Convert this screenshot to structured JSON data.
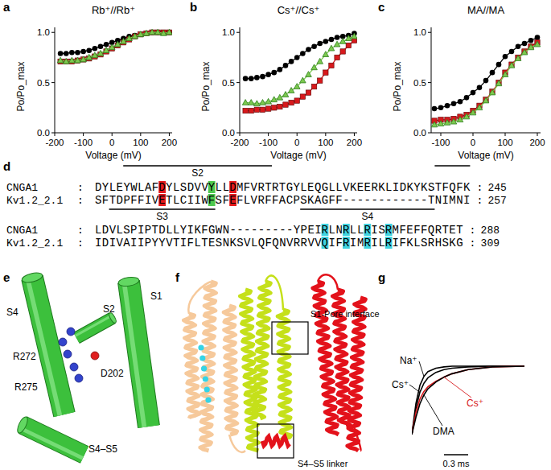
{
  "panel_labels": [
    "a",
    "b",
    "c",
    "d",
    "e",
    "f",
    "g"
  ],
  "chart_data": [
    {
      "type": "line",
      "title": "Rb⁺//Rb⁺",
      "xlabel": "Voltage (mV)",
      "ylabel": "Po/Po_max",
      "x": [
        -180,
        -160,
        -140,
        -120,
        -100,
        -80,
        -60,
        -40,
        -20,
        0,
        20,
        40,
        60,
        80,
        100,
        120,
        140,
        160,
        180,
        200
      ],
      "xlim": [
        -200,
        210
      ],
      "xticks": [
        -200,
        -100,
        0,
        100,
        200
      ],
      "ylim": [
        0,
        1.05
      ],
      "yticks": [
        {
          "value": 0,
          "label": "0.0"
        },
        {
          "value": 0.5,
          "label": "0.5"
        },
        {
          "value": 1,
          "label": "1.0"
        }
      ],
      "series": [
        {
          "color": "#000000",
          "marker": "circle",
          "values": [
            0.79,
            0.79,
            0.8,
            0.8,
            0.81,
            0.82,
            0.84,
            0.86,
            0.88,
            0.9,
            0.92,
            0.94,
            0.96,
            0.97,
            0.98,
            0.99,
            1.0,
            1.0,
            1.0,
            1.0
          ]
        },
        {
          "color": "#d7191c",
          "marker": "square",
          "values": [
            0.71,
            0.71,
            0.71,
            0.72,
            0.73,
            0.74,
            0.76,
            0.78,
            0.81,
            0.84,
            0.87,
            0.9,
            0.93,
            0.96,
            0.98,
            0.99,
            1.0,
            1.0,
            1.0,
            1.0
          ]
        },
        {
          "color": "#7cc94f",
          "marker": "triangle",
          "values": [
            0.72,
            0.71,
            0.72,
            0.72,
            0.73,
            0.75,
            0.77,
            0.79,
            0.82,
            0.85,
            0.88,
            0.91,
            0.94,
            0.96,
            0.98,
            0.99,
            1.0,
            1.0,
            0.99,
            1.0
          ]
        }
      ]
    },
    {
      "type": "line",
      "title": "Cs⁺//Cs⁺",
      "xlabel": "Voltage (mV)",
      "ylabel": "Po/Po_max",
      "x": [
        -180,
        -160,
        -140,
        -120,
        -100,
        -80,
        -60,
        -40,
        -20,
        0,
        20,
        40,
        60,
        80,
        100,
        120,
        140,
        160,
        180,
        200
      ],
      "xlim": [
        -200,
        210
      ],
      "xticks": [
        -200,
        -100,
        0,
        100,
        200
      ],
      "ylim": [
        0,
        1.05
      ],
      "yticks": [
        {
          "value": 0,
          "label": "0.0"
        },
        {
          "value": 0.5,
          "label": "0.5"
        },
        {
          "value": 1,
          "label": "1.0"
        }
      ],
      "series": [
        {
          "color": "#000000",
          "marker": "circle",
          "values": [
            0.54,
            0.54,
            0.55,
            0.56,
            0.58,
            0.6,
            0.63,
            0.67,
            0.71,
            0.75,
            0.79,
            0.83,
            0.86,
            0.89,
            0.91,
            0.93,
            0.95,
            0.96,
            0.97,
            0.99
          ]
        },
        {
          "color": "#d7191c",
          "marker": "square",
          "values": [
            0.22,
            0.22,
            0.23,
            0.23,
            0.24,
            0.25,
            0.26,
            0.28,
            0.3,
            0.32,
            0.36,
            0.4,
            0.46,
            0.52,
            0.6,
            0.67,
            0.75,
            0.81,
            0.87,
            0.92
          ]
        },
        {
          "color": "#7cc94f",
          "marker": "triangle",
          "values": [
            0.3,
            0.3,
            0.29,
            0.3,
            0.31,
            0.33,
            0.35,
            0.38,
            0.42,
            0.46,
            0.52,
            0.58,
            0.65,
            0.71,
            0.78,
            0.84,
            0.88,
            0.91,
            0.94,
            0.96
          ]
        }
      ]
    },
    {
      "type": "line",
      "title": "MA//MA",
      "xlabel": "Voltage (mV)",
      "ylabel": "Po/Po_max",
      "x": [
        -120,
        -100,
        -80,
        -60,
        -40,
        -20,
        0,
        20,
        40,
        60,
        80,
        100,
        120,
        140,
        160,
        180,
        200
      ],
      "xlim": [
        -130,
        210
      ],
      "xticks": [
        -100,
        0,
        100,
        200
      ],
      "ylim": [
        0,
        1.05
      ],
      "yticks": [
        {
          "value": 0,
          "label": "0.0"
        },
        {
          "value": 0.5,
          "label": "0.5"
        },
        {
          "value": 1,
          "label": "1.0"
        }
      ],
      "series": [
        {
          "color": "#000000",
          "marker": "circle",
          "values": [
            0.24,
            0.25,
            0.27,
            0.29,
            0.31,
            0.35,
            0.4,
            0.45,
            0.52,
            0.6,
            0.68,
            0.76,
            0.81,
            0.86,
            0.89,
            0.92,
            0.95
          ]
        },
        {
          "color": "#d7191c",
          "marker": "square",
          "values": [
            0.12,
            0.13,
            0.13,
            0.14,
            0.16,
            0.18,
            0.22,
            0.27,
            0.33,
            0.41,
            0.5,
            0.6,
            0.68,
            0.75,
            0.81,
            0.86,
            0.9
          ]
        },
        {
          "color": "#7cc94f",
          "marker": "triangle",
          "values": [
            0.08,
            0.09,
            0.1,
            0.11,
            0.13,
            0.16,
            0.2,
            0.25,
            0.32,
            0.4,
            0.49,
            0.58,
            0.67,
            0.74,
            0.8,
            0.85,
            0.88
          ]
        }
      ]
    },
    {
      "type": "line",
      "tick_labels": false,
      "x": [
        0,
        0.05,
        0.1,
        0.15,
        0.2,
        0.3,
        0.4,
        0.5,
        0.7,
        1.0,
        1.4
      ],
      "xlim": [
        0,
        1.5
      ],
      "ylim": [
        0,
        1.05
      ],
      "series": [
        {
          "name": "Na⁺",
          "color": "#000000",
          "values": [
            0,
            0.45,
            0.72,
            0.85,
            0.92,
            0.97,
            0.99,
            1.0,
            1.0,
            1.0,
            1.0
          ]
        },
        {
          "name": "Cs⁺",
          "color": "#000000",
          "values": [
            0,
            0.38,
            0.62,
            0.75,
            0.83,
            0.91,
            0.95,
            0.97,
            0.99,
            1.0,
            1.0
          ]
        },
        {
          "name": "Cs⁺",
          "color": "#d7191c",
          "values": [
            0,
            0.32,
            0.52,
            0.63,
            0.7,
            0.78,
            0.84,
            0.89,
            0.95,
            0.99,
            1.0
          ]
        },
        {
          "name": "DMA",
          "color": "#000000",
          "values": [
            0,
            0.25,
            0.45,
            0.58,
            0.67,
            0.77,
            0.84,
            0.89,
            0.95,
            0.99,
            1.0
          ]
        }
      ],
      "scale_bar": {
        "value": 0.3,
        "label": "0.3 ms"
      }
    }
  ],
  "alignment": {
    "separator": ":",
    "rows": [
      {
        "bars": [
          "S2",
          null
        ],
        "sequences": [
          {
            "name": "CNGA1",
            "end": 245,
            "segments": [
              {
                "text": "DYLEYWLAF"
              },
              {
                "text": "D",
                "color": "#e41a1c"
              },
              {
                "text": "YLSDVV"
              },
              {
                "text": "Y",
                "color": "#4ec94e"
              },
              {
                "text": "LL"
              },
              {
                "text": "D",
                "color": "#e41a1c"
              },
              {
                "text": "MFVRTRTGYLEQGLLVKEERKLIDKYKSTFQFK"
              }
            ]
          },
          {
            "name": "Kv1.2_2.1",
            "end": 257,
            "segments": [
              {
                "text": "SFTDPFFIV"
              },
              {
                "text": "E",
                "color": "#e41a1c"
              },
              {
                "text": "TLCIIW"
              },
              {
                "text": "F",
                "color": "#4ec94e"
              },
              {
                "text": "SF"
              },
              {
                "text": "E",
                "color": "#e41a1c"
              },
              {
                "text": "FLVRFFACPSKAGFF------------TNIMNI"
              }
            ]
          }
        ]
      },
      {
        "bars": [
          "S3",
          "S4"
        ],
        "sequences": [
          {
            "name": "CNGA1",
            "end": 288,
            "segments": [
              {
                "text": "LDVLSPIPTDLLYIKFGWN---------YPEI"
              },
              {
                "text": "R",
                "color": "#3fd3e0"
              },
              {
                "text": "LN"
              },
              {
                "text": "R",
                "color": "#3fd3e0"
              },
              {
                "text": "LL"
              },
              {
                "text": "R",
                "color": "#3fd3e0"
              },
              {
                "text": "IS"
              },
              {
                "text": "R",
                "color": "#3fd3e0"
              },
              {
                "text": "MFEFFQRTET"
              }
            ]
          },
          {
            "name": "Kv1.2_2.1",
            "end": 309,
            "segments": [
              {
                "text": "IDIVAIIPYYVTIFLTESNKSVLQFQNVRRVV"
              },
              {
                "text": "Q",
                "color": "#3fd3e0"
              },
              {
                "text": "IF"
              },
              {
                "text": "R",
                "color": "#3fd3e0"
              },
              {
                "text": "IM"
              },
              {
                "text": "R",
                "color": "#3fd3e0"
              },
              {
                "text": "IL"
              },
              {
                "text": "R",
                "color": "#3fd3e0"
              },
              {
                "text": "IFKLSRHSKG"
              }
            ]
          }
        ]
      }
    ]
  },
  "structure_e": {
    "labels": [
      "S4",
      "S2",
      "S1",
      "S4–S5",
      "R272",
      "R275",
      "D202"
    ]
  },
  "structure_f": {
    "labels": [
      "S1-Pore interface",
      "S4–S5 linker"
    ]
  }
}
